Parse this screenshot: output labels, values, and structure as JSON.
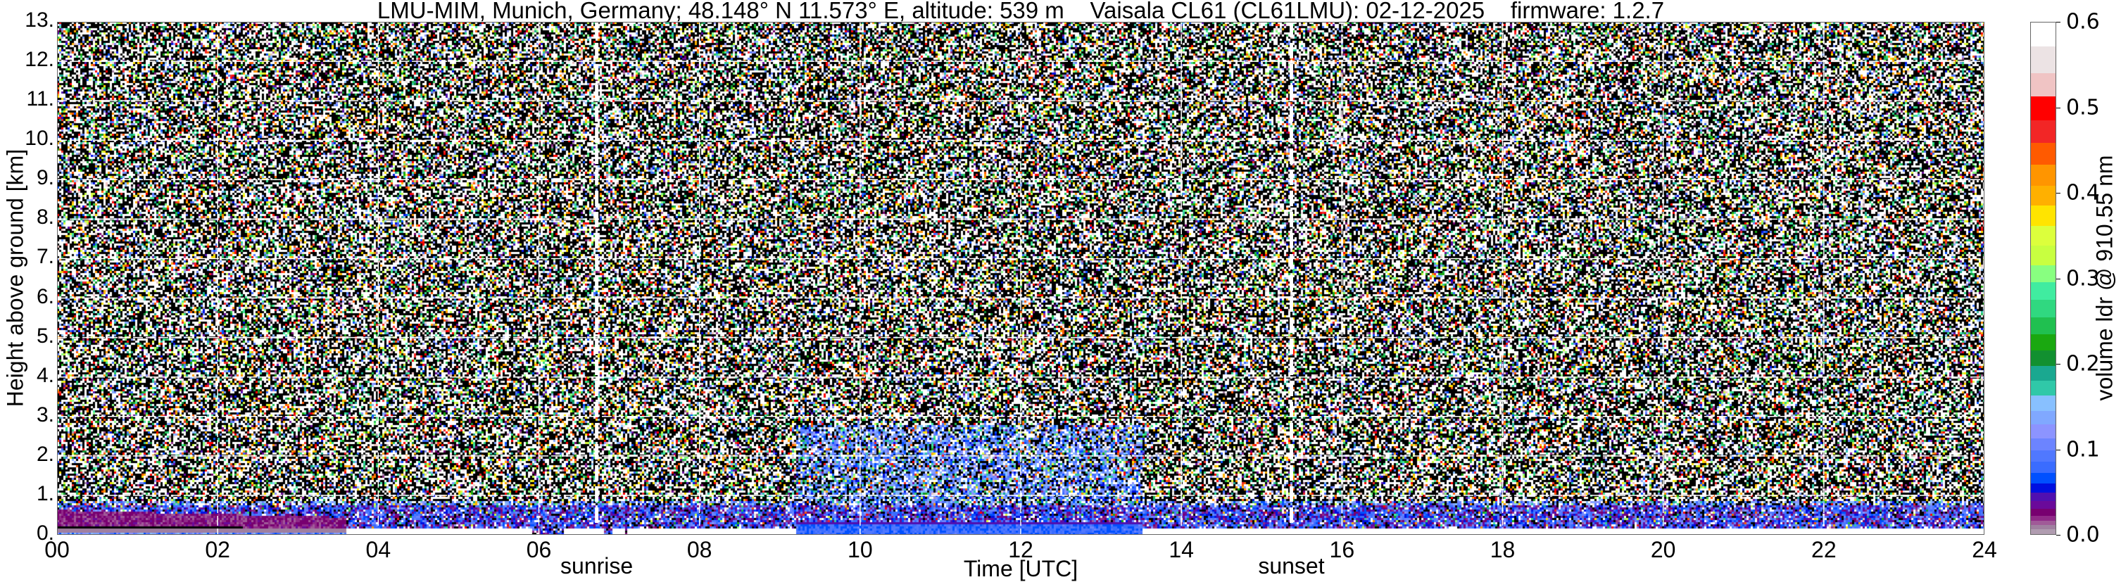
{
  "chart_data": {
    "type": "heatmap",
    "title": "LMU-MIM, Munich, Germany; 48.148° N 11.573° E, altitude: 539 m    Vaisala CL61 (CL61LMU): 02-12-2025    firmware: 1.2.7",
    "xlabel": "Time [UTC]",
    "ylabel": "Height above ground [km]",
    "xlim": [
      0,
      24
    ],
    "ylim": [
      0,
      13
    ],
    "x_ticks": [
      "00",
      "02",
      "04",
      "06",
      "08",
      "10",
      "12",
      "14",
      "16",
      "18",
      "20",
      "22",
      "24"
    ],
    "y_ticks": [
      "0.",
      "1.",
      "2.",
      "3.",
      "4.",
      "5.",
      "6.",
      "7.",
      "8.",
      "9.",
      "10.",
      "11.",
      "12.",
      "13."
    ],
    "grid": true,
    "annotations": [
      {
        "label": "sunrise",
        "x": 6.72
      },
      {
        "label": "sunset",
        "x": 15.37
      }
    ],
    "colorbar": {
      "label": "volume ldr @ 910.55 nm",
      "range": [
        0.0,
        0.6
      ],
      "ticks": [
        "0.0",
        "0.1",
        "0.2",
        "0.3",
        "0.4",
        "0.5",
        "0.6"
      ],
      "bins": [
        {
          "from": 0.0,
          "to": 0.006,
          "color": "#b09cb0"
        },
        {
          "from": 0.006,
          "to": 0.011,
          "color": "#a080a0"
        },
        {
          "from": 0.011,
          "to": 0.016,
          "color": "#a05a98"
        },
        {
          "from": 0.016,
          "to": 0.022,
          "color": "#902a88"
        },
        {
          "from": 0.022,
          "to": 0.03,
          "color": "#780070"
        },
        {
          "from": 0.03,
          "to": 0.039,
          "color": "#6a0a9a"
        },
        {
          "from": 0.039,
          "to": 0.049,
          "color": "#5010b0"
        },
        {
          "from": 0.049,
          "to": 0.06,
          "color": "#0010e0"
        },
        {
          "from": 0.06,
          "to": 0.072,
          "color": "#0050ff"
        },
        {
          "from": 0.072,
          "to": 0.085,
          "color": "#3a6cff"
        },
        {
          "from": 0.085,
          "to": 0.099,
          "color": "#5078ff"
        },
        {
          "from": 0.099,
          "to": 0.113,
          "color": "#6c84ff"
        },
        {
          "from": 0.113,
          "to": 0.129,
          "color": "#8c94ff"
        },
        {
          "from": 0.129,
          "to": 0.145,
          "color": "#80a8ff"
        },
        {
          "from": 0.145,
          "to": 0.163,
          "color": "#88c0ff"
        },
        {
          "from": 0.163,
          "to": 0.18,
          "color": "#30c8a8"
        },
        {
          "from": 0.18,
          "to": 0.198,
          "color": "#1aa890"
        },
        {
          "from": 0.198,
          "to": 0.216,
          "color": "#129030"
        },
        {
          "from": 0.216,
          "to": 0.235,
          "color": "#1aa810"
        },
        {
          "from": 0.235,
          "to": 0.255,
          "color": "#20c050"
        },
        {
          "from": 0.255,
          "to": 0.275,
          "color": "#30d880"
        },
        {
          "from": 0.275,
          "to": 0.296,
          "color": "#40eca0"
        },
        {
          "from": 0.296,
          "to": 0.316,
          "color": "#88ff80"
        },
        {
          "from": 0.316,
          "to": 0.339,
          "color": "#c8ff40"
        },
        {
          "from": 0.339,
          "to": 0.362,
          "color": "#dcff3c"
        },
        {
          "from": 0.362,
          "to": 0.386,
          "color": "#ffe400"
        },
        {
          "from": 0.386,
          "to": 0.409,
          "color": "#ffb000"
        },
        {
          "from": 0.409,
          "to": 0.434,
          "color": "#ff9500"
        },
        {
          "from": 0.434,
          "to": 0.459,
          "color": "#ff5a00"
        },
        {
          "from": 0.459,
          "to": 0.486,
          "color": "#f22626"
        },
        {
          "from": 0.486,
          "to": 0.514,
          "color": "#ff0000"
        },
        {
          "from": 0.514,
          "to": 0.541,
          "color": "#f0c4c4"
        },
        {
          "from": 0.541,
          "to": 0.572,
          "color": "#ece3e4"
        },
        {
          "from": 0.572,
          "to": 0.6,
          "color": "#ffffff"
        }
      ]
    }
  }
}
